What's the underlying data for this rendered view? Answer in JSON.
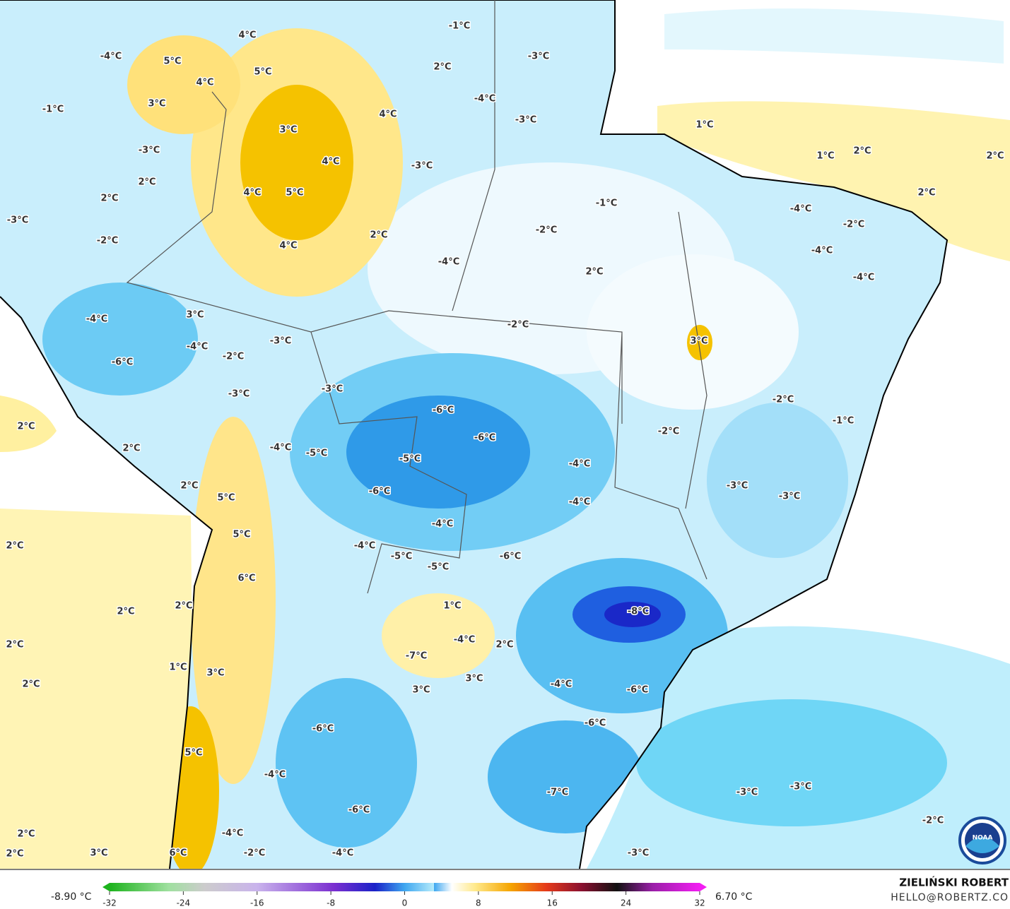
{
  "map": {
    "labels": [
      "4°C",
      "-4°C",
      "5°C",
      "5°C",
      "4°C",
      "-1°C",
      "2°C",
      "-3°C",
      "-1°C",
      "3°C",
      "4°C",
      "-4°C",
      "-3°C",
      "3°C",
      "1°C",
      "-3°C",
      "4°C",
      "-3°C",
      "1°C",
      "2°C",
      "2°C",
      "2°C",
      "2°C",
      "4°C",
      "5°C",
      "2°C",
      "-1°C",
      "-4°C",
      "-3°C",
      "-2°C",
      "-2°C",
      "2°C",
      "-2°C",
      "4°C",
      "-4°C",
      "-4°C",
      "2°C",
      "-4°C",
      "3°C",
      "-4°C",
      "-2°C",
      "3°C",
      "-3°C",
      "-4°C",
      "-2°C",
      "-6°C",
      "-3°C",
      "-3°C",
      "-2°C",
      "-6°C",
      "-1°C",
      "2°C",
      "-2°C",
      "-6°C",
      "-4°C",
      "2°C",
      "-5°C",
      "-5°C",
      "-4°C",
      "2°C",
      "-3°C",
      "-6°C",
      "-3°C",
      "5°C",
      "-4°C",
      "-4°C",
      "5°C",
      "2°C",
      "-4°C",
      "-6°C",
      "-5°C",
      "-5°C",
      "6°C",
      "1°C",
      "2°C",
      "2°C",
      "-8°C",
      "-4°C",
      "2°C",
      "2°C",
      "-7°C",
      "1°C",
      "3°C",
      "3°C",
      "2°C",
      "-4°C",
      "3°C",
      "-6°C",
      "-6°C",
      "-6°C",
      "5°C",
      "-4°C",
      "-3°C",
      "-3°C",
      "-7°C",
      "-6°C",
      "-2°C",
      "2°C",
      "-4°C",
      "-3°C",
      "2°C",
      "3°C",
      "6°C",
      "-2°C",
      "-4°C"
    ]
  },
  "legend": {
    "min_label": "-8.90 °C",
    "max_label": "6.70 °C",
    "range": [
      -32,
      32
    ],
    "ticks": [
      -32,
      -24,
      -16,
      -8,
      0,
      8,
      16,
      24,
      32
    ]
  },
  "credit": {
    "author": "ZIELIŃSKI ROBERT",
    "email": "HELLO@ROBERTZ.CO",
    "logo": "NOAA"
  }
}
